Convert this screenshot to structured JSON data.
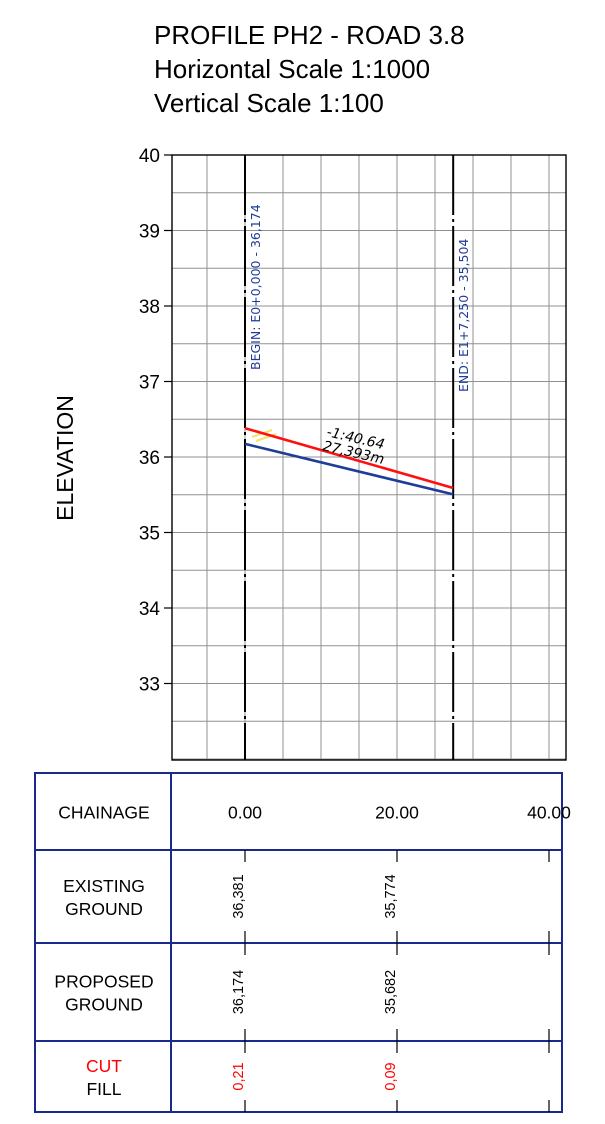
{
  "title": {
    "line1": "PROFILE PH2 - ROAD 3.8",
    "line2": "Horizontal Scale 1:1000",
    "line3": "Vertical Scale 1:100"
  },
  "colors": {
    "existing": "#ff1010",
    "proposed": "#1f3c98",
    "cut_label": "#ff0000",
    "table_border": "#1a2a8c",
    "label_text": "#1f3c98",
    "grid": "#909090"
  },
  "chart_data": {
    "type": "line",
    "title": "PROFILE PH2 - ROAD 3.8",
    "xlabel": "",
    "ylabel": "ELEVATION",
    "y_ticks": [
      "40",
      "39",
      "38",
      "37",
      "36",
      "35",
      "34",
      "33"
    ],
    "ylim": [
      32,
      40
    ],
    "xlim": [
      -8.37,
      40
    ],
    "grid": true,
    "series": [
      {
        "key": "existing",
        "x": [
          0,
          27.393
        ],
        "y": [
          36.381,
          35.589
        ]
      },
      {
        "key": "proposed",
        "x": [
          0,
          27.393
        ],
        "y": [
          36.174,
          35.504
        ]
      }
    ],
    "verticals": [
      {
        "x": 0,
        "label": "BEGIN:  E0+0,000 - 36,174"
      },
      {
        "x": 27.393,
        "label": "END:  E1+7,250 - 35,504"
      }
    ],
    "grade_label": "-1:40.64",
    "length_label": "27,393m"
  },
  "table": {
    "rows": [
      {
        "key": "chainage",
        "label_lines": [
          "CHAINAGE"
        ],
        "values": [
          "0.00",
          "20.00",
          "40.00"
        ]
      },
      {
        "key": "existing",
        "label_lines": [
          "EXISTING",
          "GROUND"
        ],
        "values": [
          "36,381",
          "35,774"
        ]
      },
      {
        "key": "proposed",
        "label_lines": [
          "PROPOSED",
          "GROUND"
        ],
        "values": [
          "36,174",
          "35,682"
        ]
      },
      {
        "key": "cutfill",
        "label_lines": [
          "CUT",
          "FILL"
        ],
        "values": [
          "0,21",
          "0,09"
        ]
      }
    ]
  }
}
